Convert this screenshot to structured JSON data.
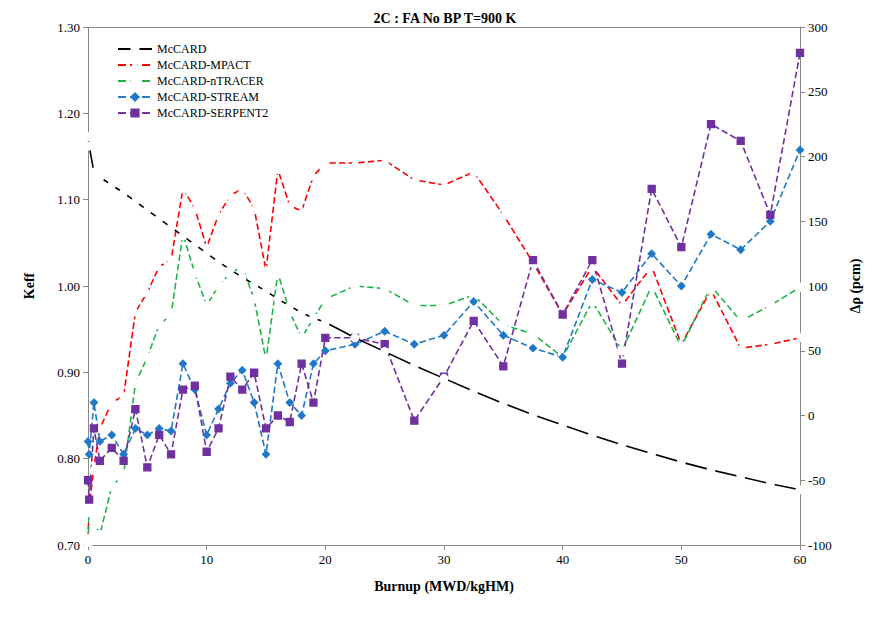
{
  "chart_data": {
    "type": "line",
    "title": "2C : FA No BP T=900 K",
    "x_label": "Burnup (MWD/kgHM)",
    "y_label": "Keff",
    "y2_label": "Δρ (pcm)",
    "x": [
      0,
      0.1,
      0.5,
      1,
      2,
      3,
      4,
      5,
      6,
      7,
      8,
      9,
      10,
      11,
      12,
      13,
      14,
      15,
      16,
      17,
      18,
      19,
      20,
      22.5,
      25,
      27.5,
      30,
      32.5,
      35,
      37.5,
      40,
      42.5,
      45,
      47.5,
      50,
      52.5,
      55,
      57.5,
      60
    ],
    "xlim": [
      0,
      60
    ],
    "xticks": [
      0,
      10,
      20,
      30,
      40,
      50,
      60
    ],
    "ylim": [
      0.7,
      1.3
    ],
    "yticks": [
      {
        "value": 0.7,
        "label": "0.70"
      },
      {
        "value": 0.8,
        "label": "0.80"
      },
      {
        "value": 0.9,
        "label": "0.90"
      },
      {
        "value": 1.0,
        "label": "1.00"
      },
      {
        "value": 1.1,
        "label": "1.10"
      },
      {
        "value": 1.2,
        "label": "1.20"
      },
      {
        "value": 1.3,
        "label": "1.30"
      }
    ],
    "y2lim": [
      -100,
      300
    ],
    "y2ticks": [
      -100,
      -50,
      0,
      50,
      100,
      150,
      200,
      250,
      300
    ],
    "grid": false,
    "legend": "upper left",
    "series": [
      {
        "name": "McCARD",
        "color": "#000000",
        "marker": "circle-open",
        "line_style": "solid",
        "axis": "y",
        "values": [
          1.173,
          1.162,
          1.132,
          1.126,
          1.117,
          1.108,
          1.098,
          1.088,
          1.078,
          1.068,
          1.058,
          1.048,
          1.038,
          1.028,
          1.019,
          1.01,
          1.002,
          0.994,
          0.985,
          0.977,
          0.969,
          0.963,
          0.958,
          0.94,
          0.924,
          0.908,
          0.893,
          0.878,
          0.864,
          0.851,
          0.839,
          0.827,
          0.816,
          0.806,
          0.796,
          0.787,
          0.779,
          0.771,
          0.764
        ]
      },
      {
        "name": "McCARD-MPACT",
        "color": "#ff0000",
        "marker": "triangle-open",
        "line_style": "dashed",
        "axis": "y2",
        "values": [
          -95,
          -70,
          -40,
          -10,
          10,
          15,
          80,
          95,
          115,
          120,
          175,
          160,
          130,
          155,
          170,
          175,
          160,
          112,
          190,
          162,
          158,
          185,
          195,
          195,
          197,
          182,
          178,
          188,
          155,
          118,
          78,
          115,
          85,
          115,
          55,
          97,
          52,
          55,
          60
        ]
      },
      {
        "name": "McCARD-nTRACER",
        "color": "#22b14c",
        "marker": "square-open",
        "line_style": "dashed",
        "axis": "y2",
        "values": [
          -98,
          -75,
          -82,
          -92,
          -55,
          -45,
          25,
          45,
          70,
          78,
          140,
          110,
          85,
          100,
          110,
          115,
          90,
          43,
          110,
          80,
          60,
          75,
          90,
          100,
          98,
          85,
          85,
          93,
          70,
          63,
          45,
          88,
          50,
          100,
          53,
          100,
          73,
          85,
          99
        ]
      },
      {
        "name": "McCARD-STREAM",
        "color": "#1f78c8",
        "marker": "diamond",
        "line_style": "dashed",
        "axis": "y2",
        "values": [
          -20,
          -30,
          10,
          -20,
          -15,
          -30,
          -10,
          -15,
          -10,
          -12,
          40,
          20,
          -15,
          5,
          25,
          35,
          10,
          -30,
          40,
          10,
          0,
          40,
          50,
          55,
          65,
          55,
          62,
          88,
          62,
          52,
          45,
          105,
          95,
          125,
          100,
          140,
          128,
          150,
          205
        ]
      },
      {
        "name": "McCARD-SERPENT2",
        "color": "#7030a0",
        "marker": "square",
        "line_style": "dashed",
        "axis": "y2",
        "values": [
          -50,
          -65,
          -10,
          -35,
          -25,
          -35,
          5,
          -40,
          -15,
          -30,
          20,
          23,
          -28,
          -10,
          30,
          20,
          33,
          -10,
          0,
          -5,
          40,
          10,
          60,
          60,
          55,
          -4,
          30,
          73,
          38,
          120,
          78,
          120,
          40,
          175,
          130,
          225,
          212,
          155,
          280
        ]
      }
    ]
  }
}
